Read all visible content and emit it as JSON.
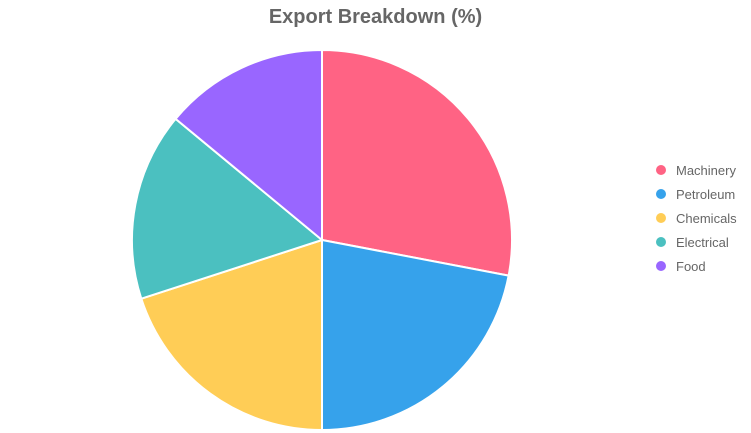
{
  "chart_data": {
    "type": "pie",
    "title": "Export Breakdown (%)",
    "categories": [
      "Machinery",
      "Petroleum",
      "Chemicals",
      "Electrical",
      "Food"
    ],
    "values": [
      28,
      22,
      20,
      16,
      14
    ],
    "colors": [
      "#ff6384",
      "#36a2eb",
      "#ffcd56",
      "#4bc0c0",
      "#9966ff"
    ],
    "legend_position": "right"
  }
}
